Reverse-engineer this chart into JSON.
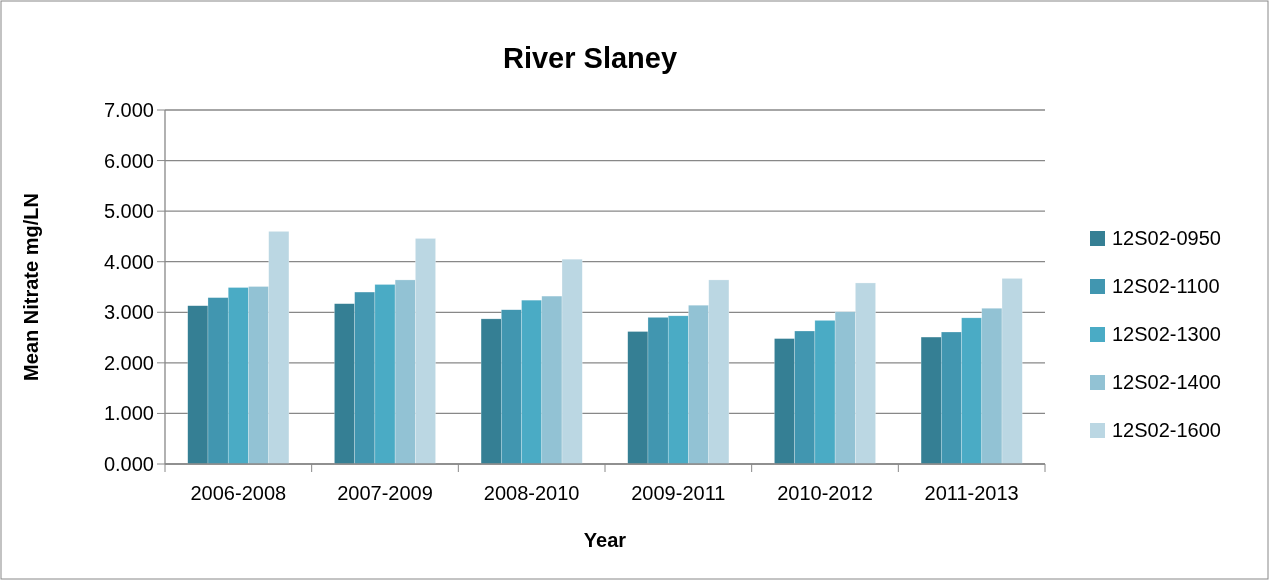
{
  "chart_data": {
    "type": "bar",
    "title": "River Slaney",
    "xlabel": "Year",
    "ylabel": "Mean Nitrate mg/LN",
    "categories": [
      "2006-2008",
      "2007-2009",
      "2008-2010",
      "2009-2011",
      "2010-2012",
      "2011-2013"
    ],
    "series": [
      {
        "name": "12S02-0950",
        "color": "#357f94",
        "values": [
          3.13,
          3.17,
          2.87,
          2.62,
          2.48,
          2.51
        ]
      },
      {
        "name": "12S02-1100",
        "color": "#4196b0",
        "values": [
          3.29,
          3.4,
          3.05,
          2.9,
          2.63,
          2.61
        ]
      },
      {
        "name": "12S02-1300",
        "color": "#4aabc5",
        "values": [
          3.49,
          3.55,
          3.24,
          2.93,
          2.84,
          2.89
        ]
      },
      {
        "name": "12S02-1400",
        "color": "#92c2d4",
        "values": [
          3.51,
          3.64,
          3.32,
          3.14,
          3.01,
          3.08
        ]
      },
      {
        "name": "12S02-1600",
        "color": "#bbd7e3",
        "values": [
          4.6,
          4.46,
          4.05,
          3.64,
          3.58,
          3.67
        ]
      }
    ],
    "ylim": [
      0,
      7
    ],
    "yticks": [
      {
        "value": 0,
        "label": "0.000"
      },
      {
        "value": 1,
        "label": "1.000"
      },
      {
        "value": 2,
        "label": "2.000"
      },
      {
        "value": 3,
        "label": "3.000"
      },
      {
        "value": 4,
        "label": "4.000"
      },
      {
        "value": 5,
        "label": "5.000"
      },
      {
        "value": 6,
        "label": "6.000"
      },
      {
        "value": 7,
        "label": "7.000"
      }
    ],
    "grid": "y",
    "legend": "right"
  }
}
